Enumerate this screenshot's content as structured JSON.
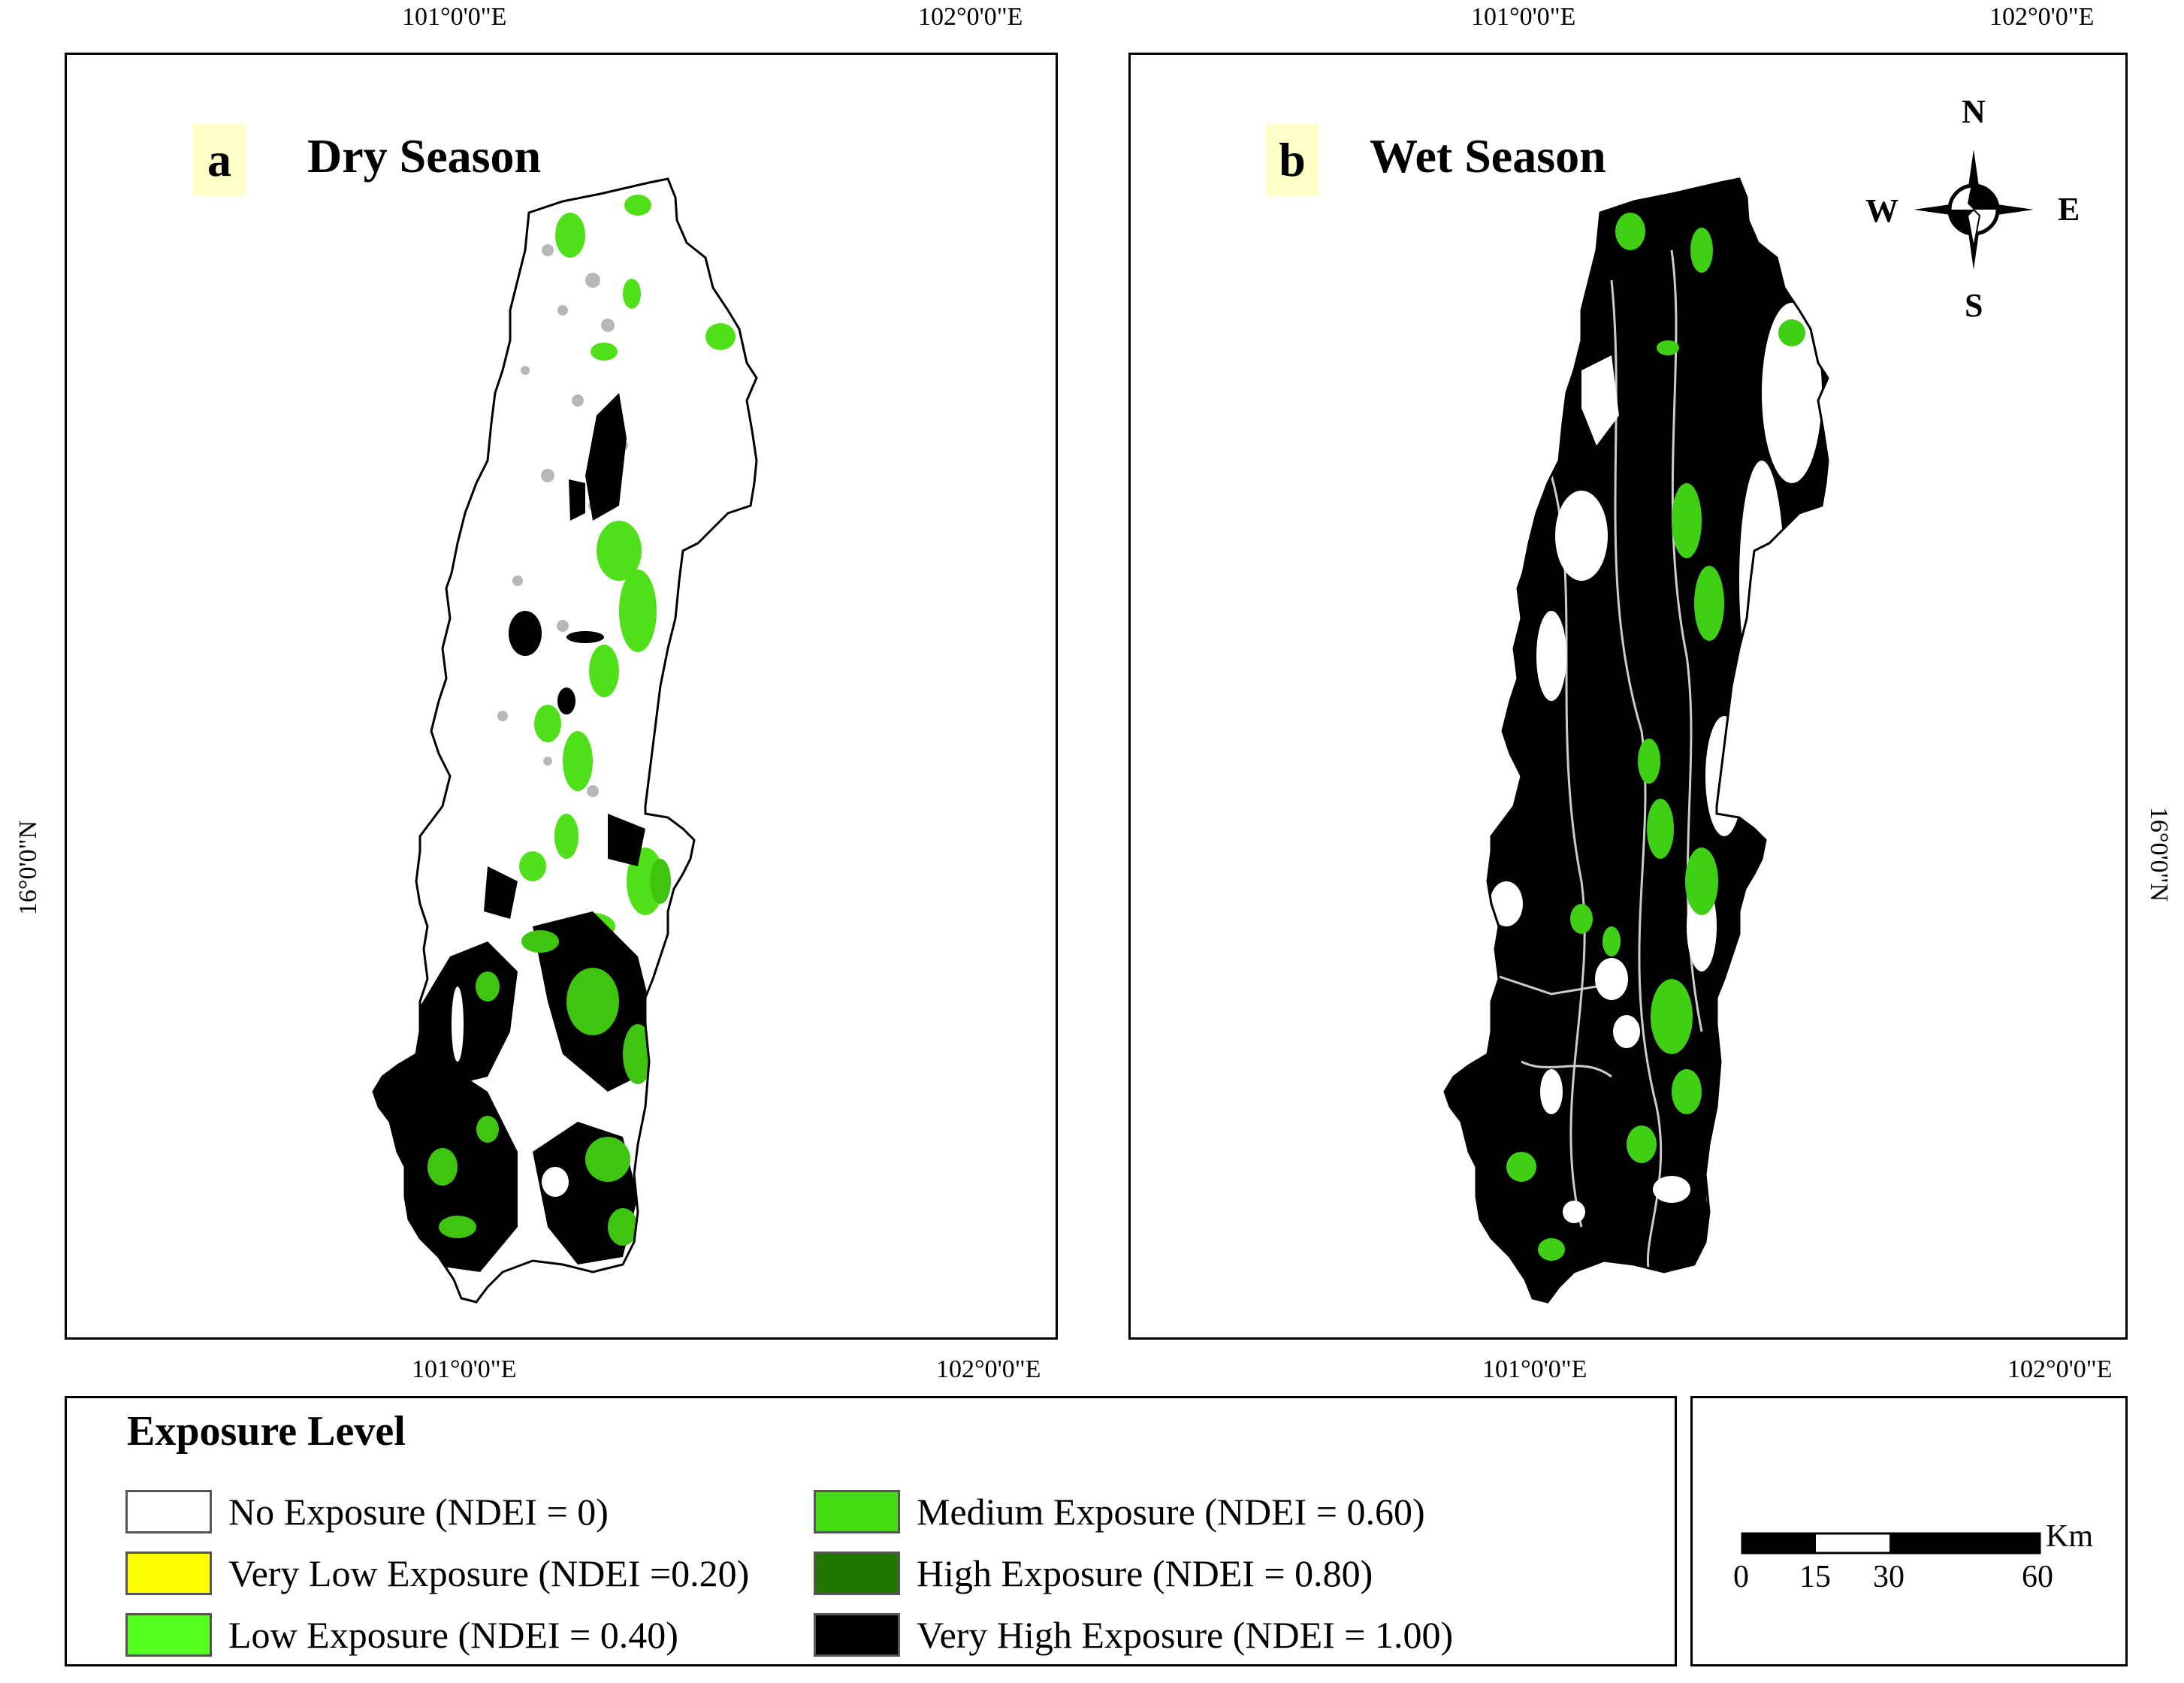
{
  "graticule": {
    "top_left": [
      "101°0'0\"E",
      "102°0'0\"E"
    ],
    "top_right": [
      "101°0'0\"E",
      "102°0'0\"E"
    ],
    "bottom_left": [
      "101°0'0\"E",
      "102°0'0\"E"
    ],
    "bottom_right": [
      "101°0'0\"E",
      "102°0'0\"E"
    ],
    "lat_left": "16°0'0\"N",
    "lat_right": "16°0'0\"N"
  },
  "panels": [
    {
      "letter": "a",
      "title": "Dry Season"
    },
    {
      "letter": "b",
      "title": "Wet Season"
    }
  ],
  "compass": {
    "n": "N",
    "s": "S",
    "e": "E",
    "w": "W"
  },
  "legend": {
    "title": "Exposure Level",
    "items": [
      {
        "label": "No Exposure (NDEI = 0)",
        "color": "#ffffff"
      },
      {
        "label": "Very Low Exposure (NDEI =0.20)",
        "color": "#ffff00"
      },
      {
        "label": "Low Exposure (NDEI = 0.40)",
        "color": "#55ff22"
      },
      {
        "label": "Medium Exposure (NDEI = 0.60)",
        "color": "#44dd11"
      },
      {
        "label": "High Exposure (NDEI = 0.80)",
        "color": "#227700"
      },
      {
        "label": "Very High Exposure (NDEI = 1.00)",
        "color": "#000000"
      }
    ]
  },
  "scalebar": {
    "unit": "Km",
    "ticks": [
      "0",
      "15",
      "30",
      "60"
    ]
  }
}
